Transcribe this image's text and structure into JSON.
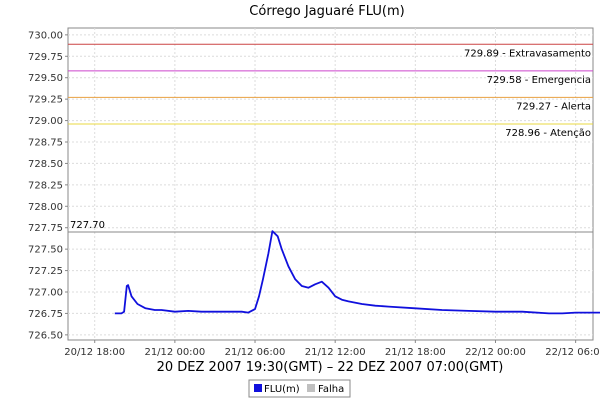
{
  "chart_data": {
    "type": "line",
    "title": "Córrego Jaguaré FLU(m)",
    "xlabel": "20 DEZ 2007 19:30(GMT) – 22 DEZ 2007 07:00(GMT)",
    "ylabel": "",
    "x_ticks": [
      "20/12 18:00",
      "21/12 00:00",
      "21/12 06:00",
      "21/12 12:00",
      "21/12 18:00",
      "22/12 00:00",
      "22/12 06:00"
    ],
    "y_ticks": [
      "726.50",
      "726.75",
      "727.00",
      "727.25",
      "727.50",
      "727.75",
      "728.00",
      "728.25",
      "728.50",
      "728.75",
      "729.00",
      "729.25",
      "729.50",
      "729.75",
      "730.00"
    ],
    "xlim_hours_from_first_tick": [
      -2.0,
      37.3
    ],
    "ylim": [
      726.44,
      730.08
    ],
    "grid": true,
    "legend_position": "bottom",
    "legend": [
      {
        "name": "FLU(m)",
        "color": "#1010dd"
      },
      {
        "name": "Falha",
        "color": "#c0c0c0"
      }
    ],
    "thresholds": [
      {
        "value": 729.89,
        "label": "729.89 - Extravasamento",
        "color": "#cc4444"
      },
      {
        "value": 729.58,
        "label": "729.58 - Emergencia",
        "color": "#cc44cc"
      },
      {
        "value": 729.27,
        "label": "729.27 - Alerta",
        "color": "#e8a040"
      },
      {
        "value": 728.96,
        "label": "728.96 - Atenção",
        "color": "#e8d840"
      },
      {
        "value": 727.7,
        "label": "727.70",
        "color": "#888888"
      }
    ],
    "end_value_label": "726.75",
    "series": [
      {
        "name": "FLU(m)",
        "color": "#1010dd",
        "x_hours_from_first_tick": [
          1.5,
          2.0,
          2.2,
          2.4,
          2.5,
          2.75,
          3.2,
          3.8,
          4.5,
          5.0,
          6.0,
          7.0,
          8.0,
          9.0,
          10.0,
          11.0,
          11.5,
          12.0,
          12.3,
          12.6,
          13.0,
          13.3,
          13.7,
          14.0,
          14.5,
          15.0,
          15.5,
          16.0,
          16.5,
          17.0,
          17.5,
          18.0,
          18.5,
          19.0,
          20.0,
          21.0,
          22.0,
          24.0,
          26.0,
          28.0,
          30.0,
          32.0,
          34.0,
          35.0,
          36.0,
          38.0,
          40.0,
          42.0,
          44.0,
          46.0,
          48.0,
          49.5
        ],
        "values": [
          726.75,
          726.75,
          726.77,
          727.07,
          727.08,
          726.95,
          726.86,
          726.81,
          726.79,
          726.79,
          726.77,
          726.78,
          726.77,
          726.77,
          726.77,
          726.77,
          726.76,
          726.8,
          726.95,
          727.15,
          727.45,
          727.71,
          727.65,
          727.5,
          727.3,
          727.15,
          727.07,
          727.05,
          727.09,
          727.12,
          727.05,
          726.95,
          726.91,
          726.89,
          726.86,
          726.84,
          726.83,
          726.81,
          726.79,
          726.78,
          726.77,
          726.77,
          726.75,
          726.75,
          726.76,
          726.76,
          726.77,
          726.78,
          726.77,
          726.77,
          726.76,
          726.75
        ]
      }
    ]
  }
}
